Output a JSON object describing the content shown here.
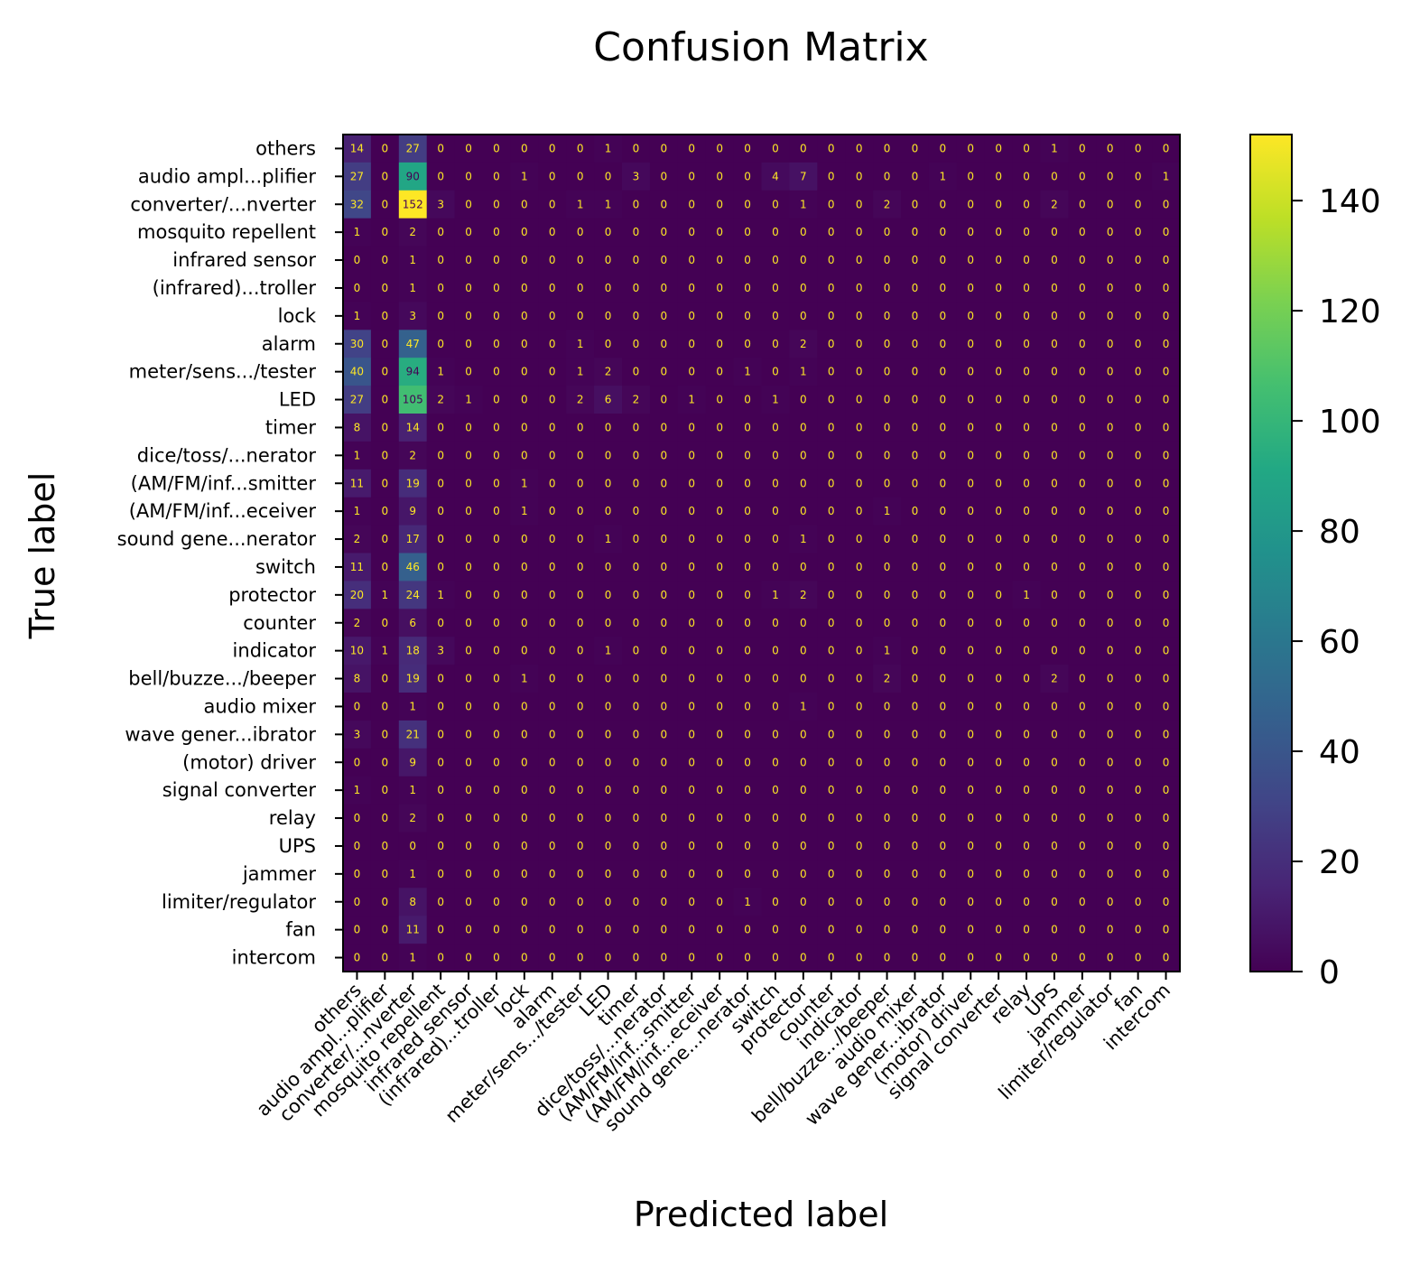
{
  "chart_data": {
    "type": "heatmap",
    "title": "Confusion Matrix",
    "xlabel": "Predicted label",
    "ylabel": "True label",
    "labels": [
      "others",
      "audio ampl...plifier",
      "converter/...nverter",
      "mosquito repellent",
      "infrared sensor",
      "(infrared)...troller",
      "lock",
      "alarm",
      "meter/sens.../tester",
      "LED",
      "timer",
      "dice/toss/...nerator",
      "(AM/FM/inf...smitter",
      "(AM/FM/inf...eceiver",
      "sound gene...nerator",
      "switch",
      "protector",
      "counter",
      "indicator",
      "bell/buzze.../beeper",
      "audio mixer",
      "wave gener...ibrator",
      "(motor) driver",
      "signal converter",
      "relay",
      "UPS",
      "jammer",
      "limiter/regulator",
      "fan",
      "intercom"
    ],
    "matrix": [
      [
        14,
        0,
        27,
        0,
        0,
        0,
        0,
        0,
        0,
        1,
        0,
        0,
        0,
        0,
        0,
        0,
        0,
        0,
        0,
        0,
        0,
        0,
        0,
        0,
        0,
        1,
        0,
        0,
        0,
        0
      ],
      [
        27,
        0,
        90,
        0,
        0,
        0,
        1,
        0,
        0,
        0,
        3,
        0,
        0,
        0,
        0,
        4,
        7,
        0,
        0,
        0,
        0,
        1,
        0,
        0,
        0,
        0,
        0,
        0,
        0,
        1
      ],
      [
        32,
        0,
        152,
        3,
        0,
        0,
        0,
        0,
        1,
        1,
        0,
        0,
        0,
        0,
        0,
        0,
        1,
        0,
        0,
        2,
        0,
        0,
        0,
        0,
        0,
        2,
        0,
        0,
        0,
        0
      ],
      [
        1,
        0,
        2,
        0,
        0,
        0,
        0,
        0,
        0,
        0,
        0,
        0,
        0,
        0,
        0,
        0,
        0,
        0,
        0,
        0,
        0,
        0,
        0,
        0,
        0,
        0,
        0,
        0,
        0,
        0
      ],
      [
        0,
        0,
        1,
        0,
        0,
        0,
        0,
        0,
        0,
        0,
        0,
        0,
        0,
        0,
        0,
        0,
        0,
        0,
        0,
        0,
        0,
        0,
        0,
        0,
        0,
        0,
        0,
        0,
        0,
        0
      ],
      [
        0,
        0,
        1,
        0,
        0,
        0,
        0,
        0,
        0,
        0,
        0,
        0,
        0,
        0,
        0,
        0,
        0,
        0,
        0,
        0,
        0,
        0,
        0,
        0,
        0,
        0,
        0,
        0,
        0,
        0
      ],
      [
        1,
        0,
        3,
        0,
        0,
        0,
        0,
        0,
        0,
        0,
        0,
        0,
        0,
        0,
        0,
        0,
        0,
        0,
        0,
        0,
        0,
        0,
        0,
        0,
        0,
        0,
        0,
        0,
        0,
        0
      ],
      [
        30,
        0,
        47,
        0,
        0,
        0,
        0,
        0,
        1,
        0,
        0,
        0,
        0,
        0,
        0,
        0,
        2,
        0,
        0,
        0,
        0,
        0,
        0,
        0,
        0,
        0,
        0,
        0,
        0,
        0
      ],
      [
        40,
        0,
        94,
        1,
        0,
        0,
        0,
        0,
        1,
        2,
        0,
        0,
        0,
        0,
        1,
        0,
        1,
        0,
        0,
        0,
        0,
        0,
        0,
        0,
        0,
        0,
        0,
        0,
        0,
        0
      ],
      [
        27,
        0,
        105,
        2,
        1,
        0,
        0,
        0,
        2,
        6,
        2,
        0,
        1,
        0,
        0,
        1,
        0,
        0,
        0,
        0,
        0,
        0,
        0,
        0,
        0,
        0,
        0,
        0,
        0,
        0
      ],
      [
        8,
        0,
        14,
        0,
        0,
        0,
        0,
        0,
        0,
        0,
        0,
        0,
        0,
        0,
        0,
        0,
        0,
        0,
        0,
        0,
        0,
        0,
        0,
        0,
        0,
        0,
        0,
        0,
        0,
        0
      ],
      [
        1,
        0,
        2,
        0,
        0,
        0,
        0,
        0,
        0,
        0,
        0,
        0,
        0,
        0,
        0,
        0,
        0,
        0,
        0,
        0,
        0,
        0,
        0,
        0,
        0,
        0,
        0,
        0,
        0,
        0
      ],
      [
        11,
        0,
        19,
        0,
        0,
        0,
        1,
        0,
        0,
        0,
        0,
        0,
        0,
        0,
        0,
        0,
        0,
        0,
        0,
        0,
        0,
        0,
        0,
        0,
        0,
        0,
        0,
        0,
        0,
        0
      ],
      [
        1,
        0,
        9,
        0,
        0,
        0,
        1,
        0,
        0,
        0,
        0,
        0,
        0,
        0,
        0,
        0,
        0,
        0,
        0,
        1,
        0,
        0,
        0,
        0,
        0,
        0,
        0,
        0,
        0,
        0
      ],
      [
        2,
        0,
        17,
        0,
        0,
        0,
        0,
        0,
        0,
        1,
        0,
        0,
        0,
        0,
        0,
        0,
        1,
        0,
        0,
        0,
        0,
        0,
        0,
        0,
        0,
        0,
        0,
        0,
        0,
        0
      ],
      [
        11,
        0,
        46,
        0,
        0,
        0,
        0,
        0,
        0,
        0,
        0,
        0,
        0,
        0,
        0,
        0,
        0,
        0,
        0,
        0,
        0,
        0,
        0,
        0,
        0,
        0,
        0,
        0,
        0,
        0
      ],
      [
        20,
        1,
        24,
        1,
        0,
        0,
        0,
        0,
        0,
        0,
        0,
        0,
        0,
        0,
        0,
        1,
        2,
        0,
        0,
        0,
        0,
        0,
        0,
        0,
        1,
        0,
        0,
        0,
        0,
        0
      ],
      [
        2,
        0,
        6,
        0,
        0,
        0,
        0,
        0,
        0,
        0,
        0,
        0,
        0,
        0,
        0,
        0,
        0,
        0,
        0,
        0,
        0,
        0,
        0,
        0,
        0,
        0,
        0,
        0,
        0,
        0
      ],
      [
        10,
        1,
        18,
        3,
        0,
        0,
        0,
        0,
        0,
        1,
        0,
        0,
        0,
        0,
        0,
        0,
        0,
        0,
        0,
        1,
        0,
        0,
        0,
        0,
        0,
        0,
        0,
        0,
        0,
        0
      ],
      [
        8,
        0,
        19,
        0,
        0,
        0,
        1,
        0,
        0,
        0,
        0,
        0,
        0,
        0,
        0,
        0,
        0,
        0,
        0,
        2,
        0,
        0,
        0,
        0,
        0,
        2,
        0,
        0,
        0,
        0
      ],
      [
        0,
        0,
        1,
        0,
        0,
        0,
        0,
        0,
        0,
        0,
        0,
        0,
        0,
        0,
        0,
        0,
        1,
        0,
        0,
        0,
        0,
        0,
        0,
        0,
        0,
        0,
        0,
        0,
        0,
        0
      ],
      [
        3,
        0,
        21,
        0,
        0,
        0,
        0,
        0,
        0,
        0,
        0,
        0,
        0,
        0,
        0,
        0,
        0,
        0,
        0,
        0,
        0,
        0,
        0,
        0,
        0,
        0,
        0,
        0,
        0,
        0
      ],
      [
        0,
        0,
        9,
        0,
        0,
        0,
        0,
        0,
        0,
        0,
        0,
        0,
        0,
        0,
        0,
        0,
        0,
        0,
        0,
        0,
        0,
        0,
        0,
        0,
        0,
        0,
        0,
        0,
        0,
        0
      ],
      [
        1,
        0,
        1,
        0,
        0,
        0,
        0,
        0,
        0,
        0,
        0,
        0,
        0,
        0,
        0,
        0,
        0,
        0,
        0,
        0,
        0,
        0,
        0,
        0,
        0,
        0,
        0,
        0,
        0,
        0
      ],
      [
        0,
        0,
        2,
        0,
        0,
        0,
        0,
        0,
        0,
        0,
        0,
        0,
        0,
        0,
        0,
        0,
        0,
        0,
        0,
        0,
        0,
        0,
        0,
        0,
        0,
        0,
        0,
        0,
        0,
        0
      ],
      [
        0,
        0,
        0,
        0,
        0,
        0,
        0,
        0,
        0,
        0,
        0,
        0,
        0,
        0,
        0,
        0,
        0,
        0,
        0,
        0,
        0,
        0,
        0,
        0,
        0,
        0,
        0,
        0,
        0,
        0
      ],
      [
        0,
        0,
        1,
        0,
        0,
        0,
        0,
        0,
        0,
        0,
        0,
        0,
        0,
        0,
        0,
        0,
        0,
        0,
        0,
        0,
        0,
        0,
        0,
        0,
        0,
        0,
        0,
        0,
        0,
        0
      ],
      [
        0,
        0,
        8,
        0,
        0,
        0,
        0,
        0,
        0,
        0,
        0,
        0,
        0,
        0,
        1,
        0,
        0,
        0,
        0,
        0,
        0,
        0,
        0,
        0,
        0,
        0,
        0,
        0,
        0,
        0
      ],
      [
        0,
        0,
        11,
        0,
        0,
        0,
        0,
        0,
        0,
        0,
        0,
        0,
        0,
        0,
        0,
        0,
        0,
        0,
        0,
        0,
        0,
        0,
        0,
        0,
        0,
        0,
        0,
        0,
        0,
        0
      ],
      [
        0,
        0,
        1,
        0,
        0,
        0,
        0,
        0,
        0,
        0,
        0,
        0,
        0,
        0,
        0,
        0,
        0,
        0,
        0,
        0,
        0,
        0,
        0,
        0,
        0,
        0,
        0,
        0,
        0,
        0
      ]
    ],
    "colormap": "viridis",
    "vmin": 0,
    "vmax": 152,
    "colorbar_ticks": [
      0,
      20,
      40,
      60,
      80,
      100,
      120,
      140
    ],
    "text_color_light": "#fde725",
    "text_color_dark": "#440154"
  }
}
